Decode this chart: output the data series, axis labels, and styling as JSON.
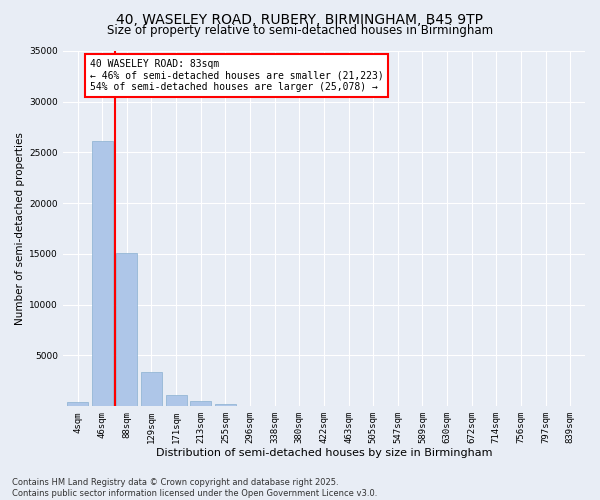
{
  "title_line1": "40, WASELEY ROAD, RUBERY, BIRMINGHAM, B45 9TP",
  "title_line2": "Size of property relative to semi-detached houses in Birmingham",
  "xlabel": "Distribution of semi-detached houses by size in Birmingham",
  "ylabel": "Number of semi-detached properties",
  "categories": [
    "4sqm",
    "46sqm",
    "88sqm",
    "129sqm",
    "171sqm",
    "213sqm",
    "255sqm",
    "296sqm",
    "338sqm",
    "380sqm",
    "422sqm",
    "463sqm",
    "505sqm",
    "547sqm",
    "589sqm",
    "630sqm",
    "672sqm",
    "714sqm",
    "756sqm",
    "797sqm",
    "839sqm"
  ],
  "values": [
    400,
    26100,
    15100,
    3400,
    1100,
    500,
    200,
    50,
    10,
    5,
    3,
    2,
    1,
    0,
    0,
    0,
    0,
    0,
    0,
    0,
    0
  ],
  "bar_color": "#aec6e8",
  "bar_edge_color": "#8ab0d0",
  "vline_x_index": 1.5,
  "vline_color": "red",
  "annotation_title": "40 WASELEY ROAD: 83sqm",
  "annotation_line2": "← 46% of semi-detached houses are smaller (21,223)",
  "annotation_line3": "54% of semi-detached houses are larger (25,078) →",
  "ylim": [
    0,
    35000
  ],
  "yticks": [
    0,
    5000,
    10000,
    15000,
    20000,
    25000,
    30000,
    35000
  ],
  "bg_color": "#e8edf5",
  "plot_bg_color": "#e8edf5",
  "footer_line1": "Contains HM Land Registry data © Crown copyright and database right 2025.",
  "footer_line2": "Contains public sector information licensed under the Open Government Licence v3.0.",
  "title_fontsize": 10,
  "subtitle_fontsize": 8.5,
  "xlabel_fontsize": 8,
  "ylabel_fontsize": 7.5,
  "tick_fontsize": 6.5,
  "footer_fontsize": 6,
  "annotation_fontsize": 7
}
